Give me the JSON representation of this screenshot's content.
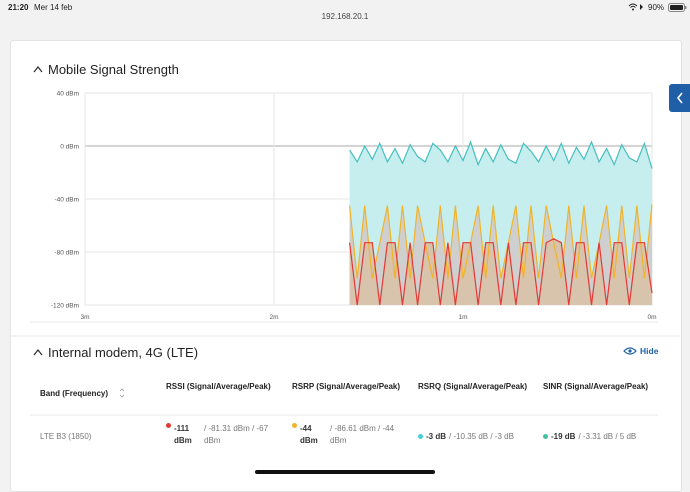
{
  "status_bar": {
    "time": "21:20",
    "date": "Mer 14 feb",
    "url": "192.168.20.1",
    "battery": "90%"
  },
  "chart_data": {
    "type": "area",
    "title": "Mobile Signal Strength",
    "x": [
      1.6,
      1.56,
      1.52,
      1.48,
      1.44,
      1.4,
      1.36,
      1.32,
      1.28,
      1.24,
      1.2,
      1.16,
      1.12,
      1.08,
      1.04,
      1,
      0.96,
      0.92,
      0.88,
      0.84,
      0.8,
      0.76,
      0.72,
      0.68,
      0.64,
      0.6,
      0.56,
      0.52,
      0.48,
      0.44,
      0.4,
      0.36,
      0.32,
      0.28,
      0.24,
      0.2,
      0.16,
      0.12,
      0.08,
      0.04,
      0
    ],
    "xlim": [
      3,
      0
    ],
    "xticks": [
      {
        "value": 3,
        "label": "3m"
      },
      {
        "value": 2,
        "label": "2m"
      },
      {
        "value": 1,
        "label": "1m"
      },
      {
        "value": 0,
        "label": "0m"
      }
    ],
    "ylim": [
      -120,
      40
    ],
    "yticks": [
      {
        "value": 40,
        "label": "40 dBm"
      },
      {
        "value": 0,
        "label": "0 dBm"
      },
      {
        "value": -40,
        "label": "-40 dBm"
      },
      {
        "value": -80,
        "label": "-80 dBm"
      },
      {
        "value": -120,
        "label": "-120 dBm"
      }
    ],
    "grid": true,
    "series": [
      {
        "color": "#45bfbf",
        "fill": "#c6eeee",
        "values": [
          -3,
          -12,
          0,
          -10,
          2,
          -12,
          -2,
          -13,
          1,
          -8,
          -12,
          2,
          -3,
          -12,
          0,
          -11,
          3,
          -14,
          -2,
          -12,
          1,
          -10,
          -13,
          2,
          -4,
          -12,
          0,
          -11,
          2,
          -13,
          -1,
          -10,
          3,
          -12,
          -2,
          -14,
          1,
          -9,
          -12,
          2,
          -17
        ]
      },
      {
        "color": "#f0b429",
        "fill": "#cfcfcf",
        "values": [
          -45,
          -100,
          -45,
          -100,
          -73,
          -45,
          -100,
          -45,
          -100,
          -45,
          -73,
          -100,
          -45,
          -100,
          -45,
          -100,
          -73,
          -45,
          -100,
          -45,
          -100,
          -73,
          -45,
          -100,
          -45,
          -100,
          -45,
          -73,
          -100,
          -45,
          -100,
          -45,
          -100,
          -73,
          -45,
          -100,
          -45,
          -100,
          -45,
          -100,
          -44
        ]
      },
      {
        "color": "#e53935",
        "fill": "#d8c4ac",
        "values": [
          -73,
          -120,
          -73,
          -73,
          -120,
          -73,
          -73,
          -120,
          -73,
          -120,
          -73,
          -73,
          -120,
          -73,
          -120,
          -73,
          -73,
          -120,
          -73,
          -73,
          -120,
          -73,
          -120,
          -73,
          -73,
          -120,
          -73,
          -70,
          -73,
          -120,
          -73,
          -73,
          -120,
          -73,
          -120,
          -73,
          -73,
          -120,
          -73,
          -73,
          -111
        ]
      }
    ]
  },
  "modem": {
    "title": "Internal modem, 4G (LTE)",
    "toggle": "Hide",
    "headers": [
      "Band (Frequency)",
      "RSSI (Signal/Average/Peak)",
      "RSRP (Signal/Average/Peak)",
      "RSRQ (Signal/Average/Peak)",
      "SINR (Signal/Average/Peak)"
    ],
    "row": [
      {
        "text": "LTE B3 (1850)"
      },
      {
        "signal": "-111 dBm",
        "rest": "/ -81.31 dBm / -67 dBm",
        "color": "#e53935"
      },
      {
        "signal": "-44 dBm",
        "rest": "/ -86.61 dBm / -44 dBm",
        "color": "#f0b429"
      },
      {
        "signal": "-3 dB",
        "rest": "/ -10.35 dB / -3 dB",
        "color": "#45cfd6"
      },
      {
        "signal": "-19 dB",
        "rest": "/ -3.31 dB / 5 dB",
        "color": "#45bfa0"
      }
    ]
  }
}
